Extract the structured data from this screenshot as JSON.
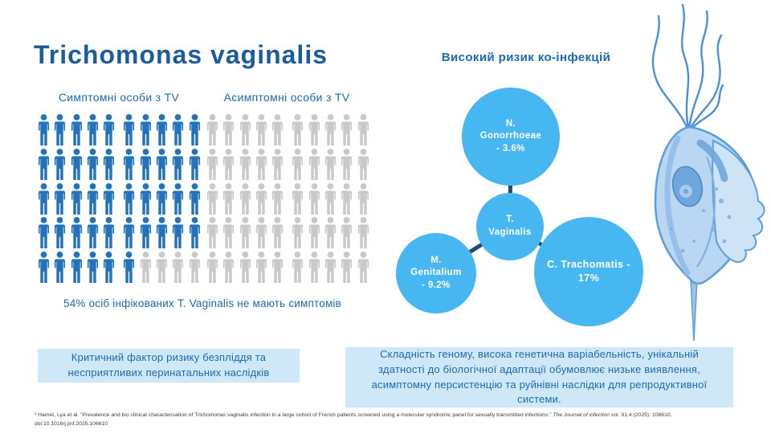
{
  "slide": {
    "title": "Trichomonas vaginalis"
  },
  "pictograph": {
    "left_label": "Симптомні особи з TV",
    "right_label": "Асимптомні особи з TV",
    "caption": "54% осіб інфікованих T. Vaginalis не мають симптомів",
    "groups": [
      {
        "id": "symptomatic-group",
        "total": 50,
        "highlighted": 46
      },
      {
        "id": "asymptomatic-group",
        "total": 50,
        "highlighted": 0
      }
    ],
    "colors": {
      "highlighted": "#2273b9",
      "muted": "#c9c9c9"
    }
  },
  "coinfection": {
    "header": "Високий ризик ко-інфекцій",
    "bubble_color": "#47b7f1",
    "connector_color": "#1b4a73",
    "bubbles": [
      {
        "id": "center",
        "lines": [
          "T.",
          "Vaginalis"
        ]
      },
      {
        "id": "top",
        "lines": [
          "N.",
          "Gonorrhoeae",
          "- 3.6%"
        ]
      },
      {
        "id": "left",
        "lines": [
          "M.",
          "Genitalium",
          "- 9.2%"
        ]
      },
      {
        "id": "right",
        "lines": [
          "C. Trachomatis -",
          "17%"
        ]
      }
    ]
  },
  "boxes": {
    "left": "Критичний фактор ризику безпліддя та несприятливих перинатальних наслідків",
    "right": "Складність геному, висока генетична варіабельність, унікальній здатності до біологічної адаптації обумовлює низьке виявлення, асимптомну персистенцію та руйнівні наслідки для репродуктивної системи."
  },
  "footnote": {
    "before_journal": "¹ Hamet, Lya et al. “Prevalence and bio clinical characterisation of Trichomonas vaginalis infection in a large cohort of French patients screened using a molecular syndromic panel for sexually transmitted infections.” ",
    "journal": "The Journal of infection",
    "after_journal": " vol. 91,4 (2025): 106610. doi:10.1016/j.jinf.2025.106610"
  },
  "chart_data": [
    {
      "type": "pictograph",
      "title": "Симптомні / Асимптомні особи з TV",
      "categories": [
        "Симптомні особи з TV",
        "Асимптомні особи з TV"
      ],
      "values": [
        46,
        54
      ],
      "unit": "1 icon = 1 person of 100",
      "annotation": "54% осіб інфікованих T. Vaginalis не мають симптомів",
      "icon_colors": {
        "symptomatic": "#2273b9",
        "asymptomatic": "#c9c9c9"
      }
    },
    {
      "type": "bubble",
      "title": "Високий ризик ко-інфекцій",
      "center_node": "T. Vaginalis",
      "categories": [
        "N. Gonorrhoeae",
        "M. Genitalium",
        "C. Trachomatis"
      ],
      "values": [
        3.6,
        9.2,
        17
      ],
      "value_unit": "%"
    }
  ]
}
